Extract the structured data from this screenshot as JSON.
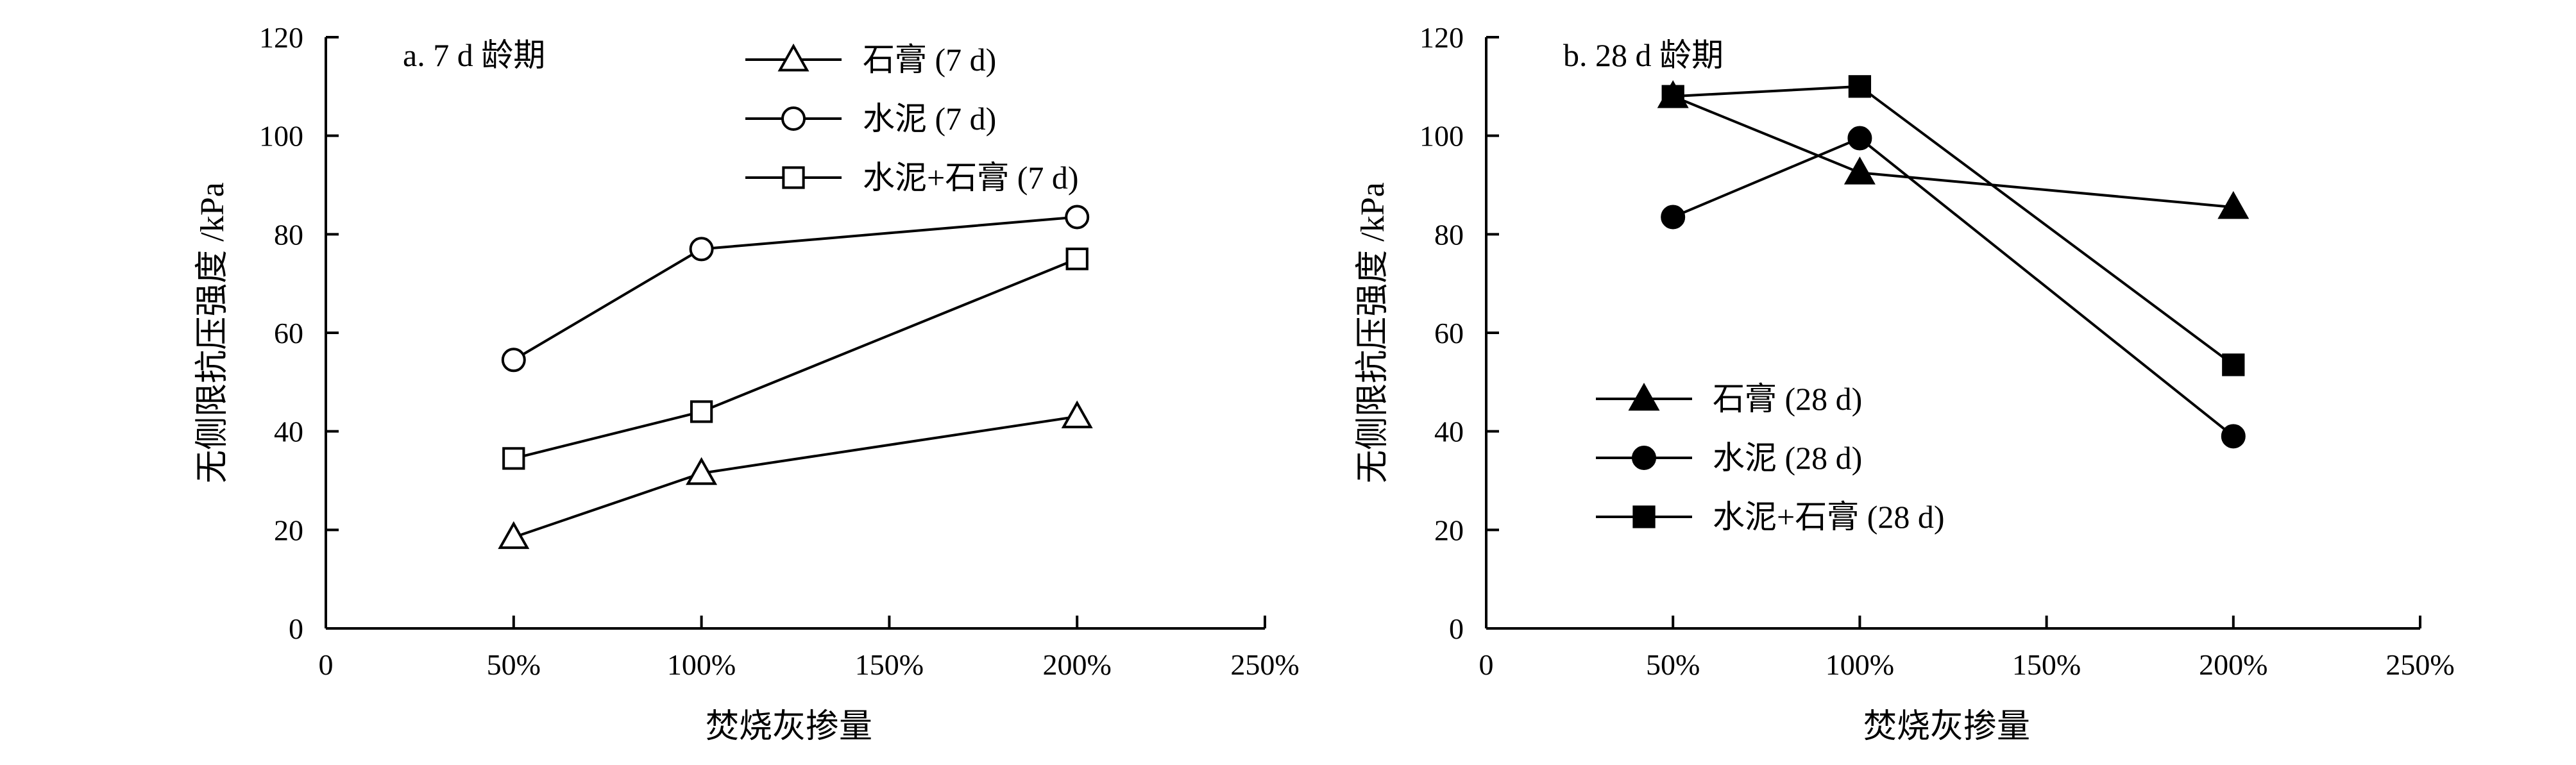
{
  "chart_data": [
    {
      "type": "line",
      "title": "a. 7 d 龄期",
      "xlabel": "焚烧灰掺量",
      "ylabel": "无侧限抗压强度 /kPa",
      "x": [
        50,
        100,
        200
      ],
      "x_ticks": [
        "0",
        "50%",
        "100%",
        "150%",
        "200%",
        "250%"
      ],
      "xlim": [
        0,
        250
      ],
      "ylim": [
        0,
        120
      ],
      "y_ticks": [
        "0",
        "20",
        "40",
        "60",
        "80",
        "100",
        "120"
      ],
      "grid": false,
      "legend_position": "top-right",
      "series": [
        {
          "name": "石膏 (7 d)",
          "marker": "triangle",
          "filled": false,
          "values": [
            18.5,
            31.5,
            43.0
          ]
        },
        {
          "name": "水泥 (7 d)",
          "marker": "circle",
          "filled": false,
          "values": [
            54.5,
            77.0,
            83.5
          ]
        },
        {
          "name": "水泥+石膏 (7 d)",
          "marker": "square",
          "filled": false,
          "values": [
            34.5,
            44.0,
            75.0
          ]
        }
      ]
    },
    {
      "type": "line",
      "title": "b. 28 d 龄期",
      "xlabel": "焚烧灰掺量",
      "ylabel": "无侧限抗压强度 /kPa",
      "x": [
        50,
        100,
        200
      ],
      "x_ticks": [
        "0",
        "50%",
        "100%",
        "150%",
        "200%",
        "250%"
      ],
      "xlim": [
        0,
        250
      ],
      "ylim": [
        0,
        120
      ],
      "y_ticks": [
        "0",
        "20",
        "40",
        "60",
        "80",
        "100",
        "120"
      ],
      "grid": false,
      "legend_position": "bottom-left",
      "series": [
        {
          "name": "石膏 (28 d)",
          "marker": "triangle",
          "filled": true,
          "values": [
            108.0,
            92.5,
            85.5
          ]
        },
        {
          "name": "水泥 (28 d)",
          "marker": "circle",
          "filled": true,
          "values": [
            83.5,
            99.5,
            39.0
          ]
        },
        {
          "name": "水泥+石膏 (28 d)",
          "marker": "square",
          "filled": true,
          "values": [
            108.0,
            110.0,
            53.5
          ]
        }
      ]
    }
  ]
}
